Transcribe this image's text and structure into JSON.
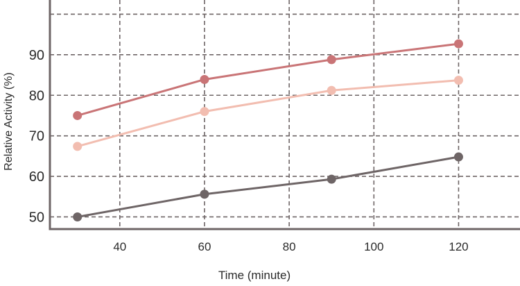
{
  "chart_data": {
    "type": "line",
    "title": "",
    "xlabel": "Time (minute)",
    "ylabel": "Relative Activity (%)",
    "xlim": [
      23.5,
      134.5
    ],
    "ylim": [
      47,
      103.5
    ],
    "xticks": [
      40,
      60,
      80,
      100,
      120
    ],
    "yticks": [
      50,
      60,
      70,
      80,
      90
    ],
    "ygrid_extra": [
      100
    ],
    "grid": true,
    "grid_style": "dashed",
    "axis_color": "#6e6566",
    "x": [
      30,
      60,
      90,
      120
    ],
    "series": [
      {
        "color": "#c97476",
        "values": [
          75,
          83.9,
          88.8,
          92.7
        ]
      },
      {
        "color": "#f2bdb0",
        "values": [
          67.4,
          76,
          81.2,
          83.7
        ]
      },
      {
        "color": "#6e6566",
        "values": [
          50,
          55.6,
          59.3,
          64.8
        ]
      }
    ]
  }
}
